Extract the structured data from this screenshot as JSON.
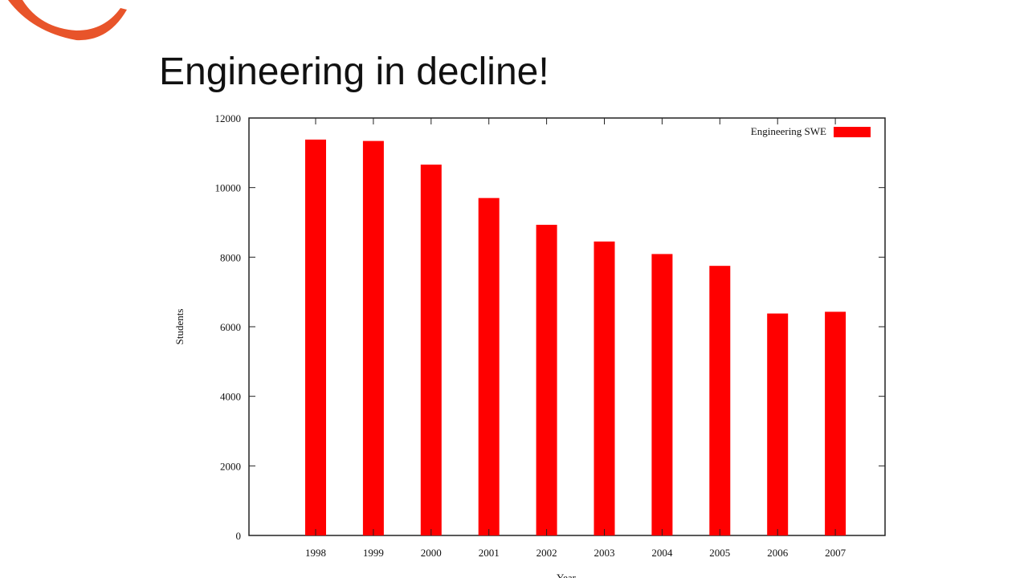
{
  "slide": {
    "title": "Engineering in decline!"
  },
  "colors": {
    "bar": "#ff0000",
    "axis": "#222222",
    "logo": "#e8542a"
  },
  "icons": {
    "logo": "orange-arc-logo"
  },
  "chart_data": {
    "type": "bar",
    "categories": [
      "1998",
      "1999",
      "2000",
      "2001",
      "2002",
      "2003",
      "2004",
      "2005",
      "2006",
      "2007"
    ],
    "series": [
      {
        "name": "Engineering SWE",
        "values": [
          11380,
          11340,
          10660,
          9700,
          8930,
          8450,
          8090,
          7750,
          6380,
          6430
        ]
      }
    ],
    "xlabel": "Year",
    "ylabel": "Students",
    "ylim": [
      0,
      12000
    ],
    "yticks": [
      0,
      2000,
      4000,
      6000,
      8000,
      10000,
      12000
    ],
    "legend": {
      "label": "Engineering SWE",
      "position": "top-right"
    },
    "grid": false
  }
}
